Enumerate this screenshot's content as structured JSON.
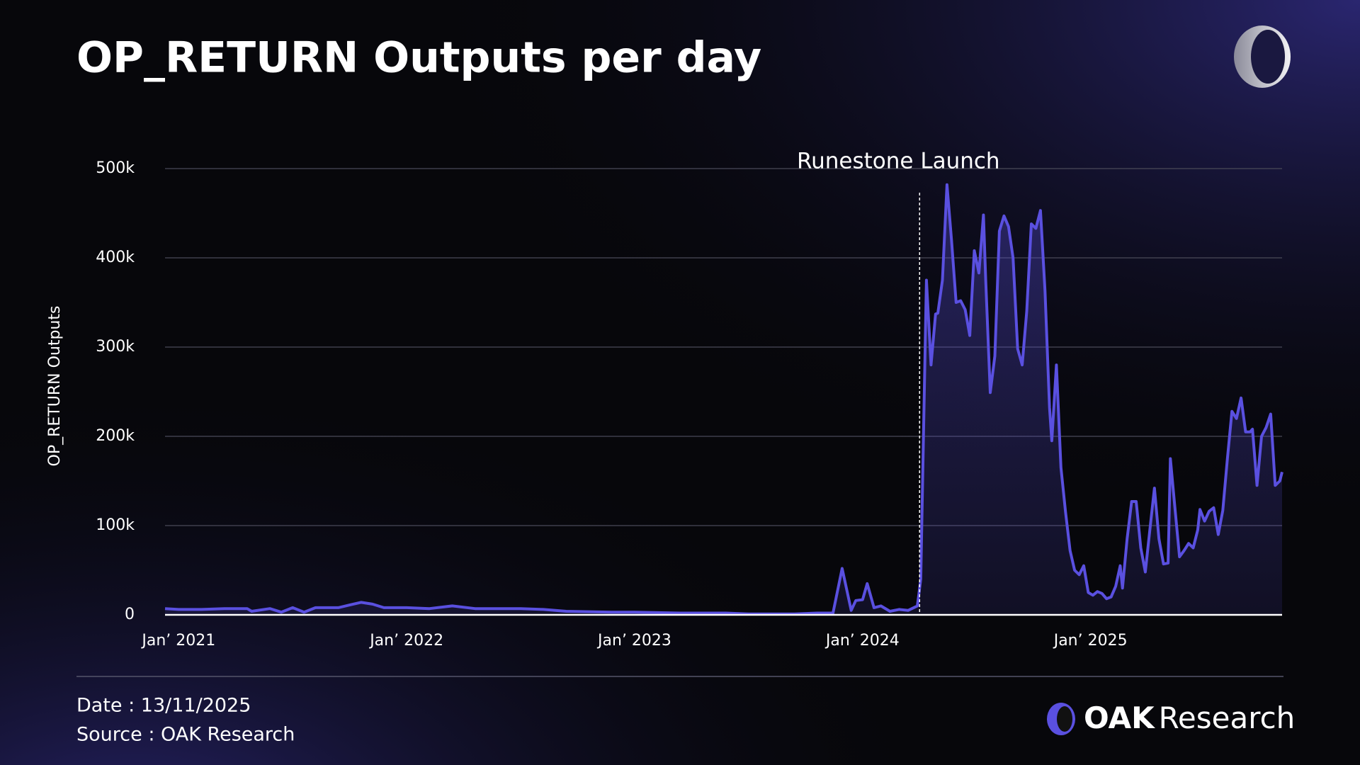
{
  "chart_data": {
    "type": "line",
    "title": "OP_RETURN Outputs per day",
    "y_label": "OP_RETURN Outputs",
    "x": [
      2020.94,
      2021.0,
      2021.1,
      2021.2,
      2021.3,
      2021.32,
      2021.4,
      2021.45,
      2021.5,
      2021.55,
      2021.6,
      2021.7,
      2021.75,
      2021.8,
      2021.85,
      2021.9,
      2022.0,
      2022.1,
      2022.2,
      2022.3,
      2022.5,
      2022.6,
      2022.7,
      2022.9,
      2023.0,
      2023.2,
      2023.4,
      2023.5,
      2023.7,
      2023.8,
      2023.87,
      2023.91,
      2023.95,
      2023.97,
      2024.0,
      2024.02,
      2024.05,
      2024.08,
      2024.12,
      2024.16,
      2024.2,
      2024.24,
      2024.255,
      2024.28,
      2024.3,
      2024.32,
      2024.33,
      2024.35,
      2024.37,
      2024.39,
      2024.41,
      2024.43,
      2024.45,
      2024.47,
      2024.49,
      2024.51,
      2024.53,
      2024.54,
      2024.56,
      2024.58,
      2024.6,
      2024.62,
      2024.64,
      2024.66,
      2024.68,
      2024.7,
      2024.72,
      2024.74,
      2024.76,
      2024.78,
      2024.8,
      2024.82,
      2024.83,
      2024.85,
      2024.87,
      2024.89,
      2024.91,
      2024.93,
      2024.95,
      2024.97,
      2024.99,
      2025.01,
      2025.03,
      2025.05,
      2025.07,
      2025.09,
      2025.11,
      2025.13,
      2025.14,
      2025.16,
      2025.18,
      2025.2,
      2025.22,
      2025.24,
      2025.26,
      2025.28,
      2025.3,
      2025.32,
      2025.34,
      2025.35,
      2025.37,
      2025.39,
      2025.41,
      2025.43,
      2025.45,
      2025.47,
      2025.48,
      2025.5,
      2025.52,
      2025.54,
      2025.56,
      2025.58,
      2025.6,
      2025.62,
      2025.64,
      2025.66,
      2025.68,
      2025.7,
      2025.71,
      2025.73,
      2025.75,
      2025.77,
      2025.79,
      2025.81,
      2025.83,
      2025.84
    ],
    "series": [
      {
        "name": "OP_RETURN Outputs",
        "color": "#5a50e0",
        "values": [
          7000,
          6000,
          6000,
          7000,
          7000,
          4000,
          7000,
          3000,
          8000,
          3000,
          8000,
          8000,
          11000,
          14000,
          12000,
          8000,
          8000,
          7000,
          10000,
          7000,
          7000,
          6000,
          4000,
          3000,
          3000,
          2000,
          2000,
          1000,
          1000,
          2000,
          2000,
          52000,
          5000,
          16000,
          17000,
          35000,
          8000,
          10000,
          4000,
          6000,
          5000,
          10000,
          40000,
          375000,
          280000,
          337000,
          338000,
          375000,
          482000,
          420000,
          350000,
          352000,
          342000,
          313000,
          408000,
          383000,
          448000,
          375000,
          249000,
          290000,
          430000,
          447000,
          435000,
          400000,
          298000,
          280000,
          340000,
          438000,
          433000,
          453000,
          363000,
          232000,
          195000,
          280000,
          165000,
          115000,
          72000,
          50000,
          45000,
          55000,
          25000,
          22000,
          26000,
          24000,
          18000,
          20000,
          32000,
          55000,
          30000,
          85000,
          127000,
          127000,
          75000,
          48000,
          95000,
          142000,
          85000,
          57000,
          58000,
          175000,
          120000,
          65000,
          72000,
          80000,
          75000,
          95000,
          118000,
          105000,
          116000,
          120000,
          90000,
          117000,
          175000,
          228000,
          220000,
          243000,
          205000,
          205000,
          208000,
          145000,
          200000,
          210000,
          225000,
          145000,
          150000,
          160000
        ]
      }
    ],
    "xlim": [
      2020.94,
      2025.84
    ],
    "xticks": [
      {
        "value": 2021,
        "label": "Jan’ 2021"
      },
      {
        "value": 2022,
        "label": "Jan’ 2022"
      },
      {
        "value": 2023,
        "label": "Jan’ 2023"
      },
      {
        "value": 2024,
        "label": "Jan’ 2024"
      },
      {
        "value": 2025,
        "label": "Jan’ 2025"
      }
    ],
    "ylim": [
      0,
      500000
    ],
    "yticks": [
      0,
      {
        "value": 100000,
        "label": "100k"
      },
      {
        "value": 200000,
        "label": "200k"
      },
      {
        "value": 300000,
        "label": "300k"
      },
      {
        "value": 400000,
        "label": "400k"
      },
      {
        "value": 500000,
        "label": "500k"
      }
    ],
    "grid": true,
    "annotations": [
      {
        "text": "Runestone Launch",
        "x": 2024.25
      }
    ]
  },
  "footer": {
    "date": "Date : 13/11/2025",
    "source": "Source : OAK Research",
    "logo_bold": "OAK",
    "logo_regular": "Research"
  }
}
